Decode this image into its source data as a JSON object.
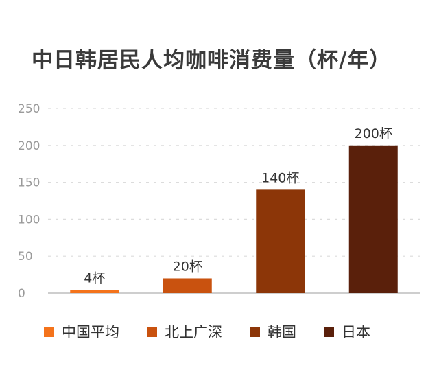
{
  "title": "中日韩居民人均咖啡消费量（杯/年）",
  "chart_data": {
    "type": "bar",
    "title": "中日韩居民人均咖啡消费量（杯/年）",
    "categories": [
      "中国平均",
      "北上广深",
      "韩国",
      "日本"
    ],
    "values": [
      4,
      20,
      140,
      200
    ],
    "data_labels": [
      "4杯",
      "20杯",
      "140杯",
      "200杯"
    ],
    "colors": [
      "#f4731b",
      "#c9520f",
      "#8c3608",
      "#5a200b"
    ],
    "ylim": [
      0,
      250
    ],
    "yticks": [
      0,
      50,
      100,
      150,
      200,
      250
    ],
    "grid": true,
    "legend_position": "bottom"
  },
  "legend": [
    {
      "label": "中国平均",
      "color": "#f4731b"
    },
    {
      "label": "北上广深",
      "color": "#c9520f"
    },
    {
      "label": "韩国",
      "color": "#8c3608"
    },
    {
      "label": "日本",
      "color": "#5a200b"
    }
  ]
}
